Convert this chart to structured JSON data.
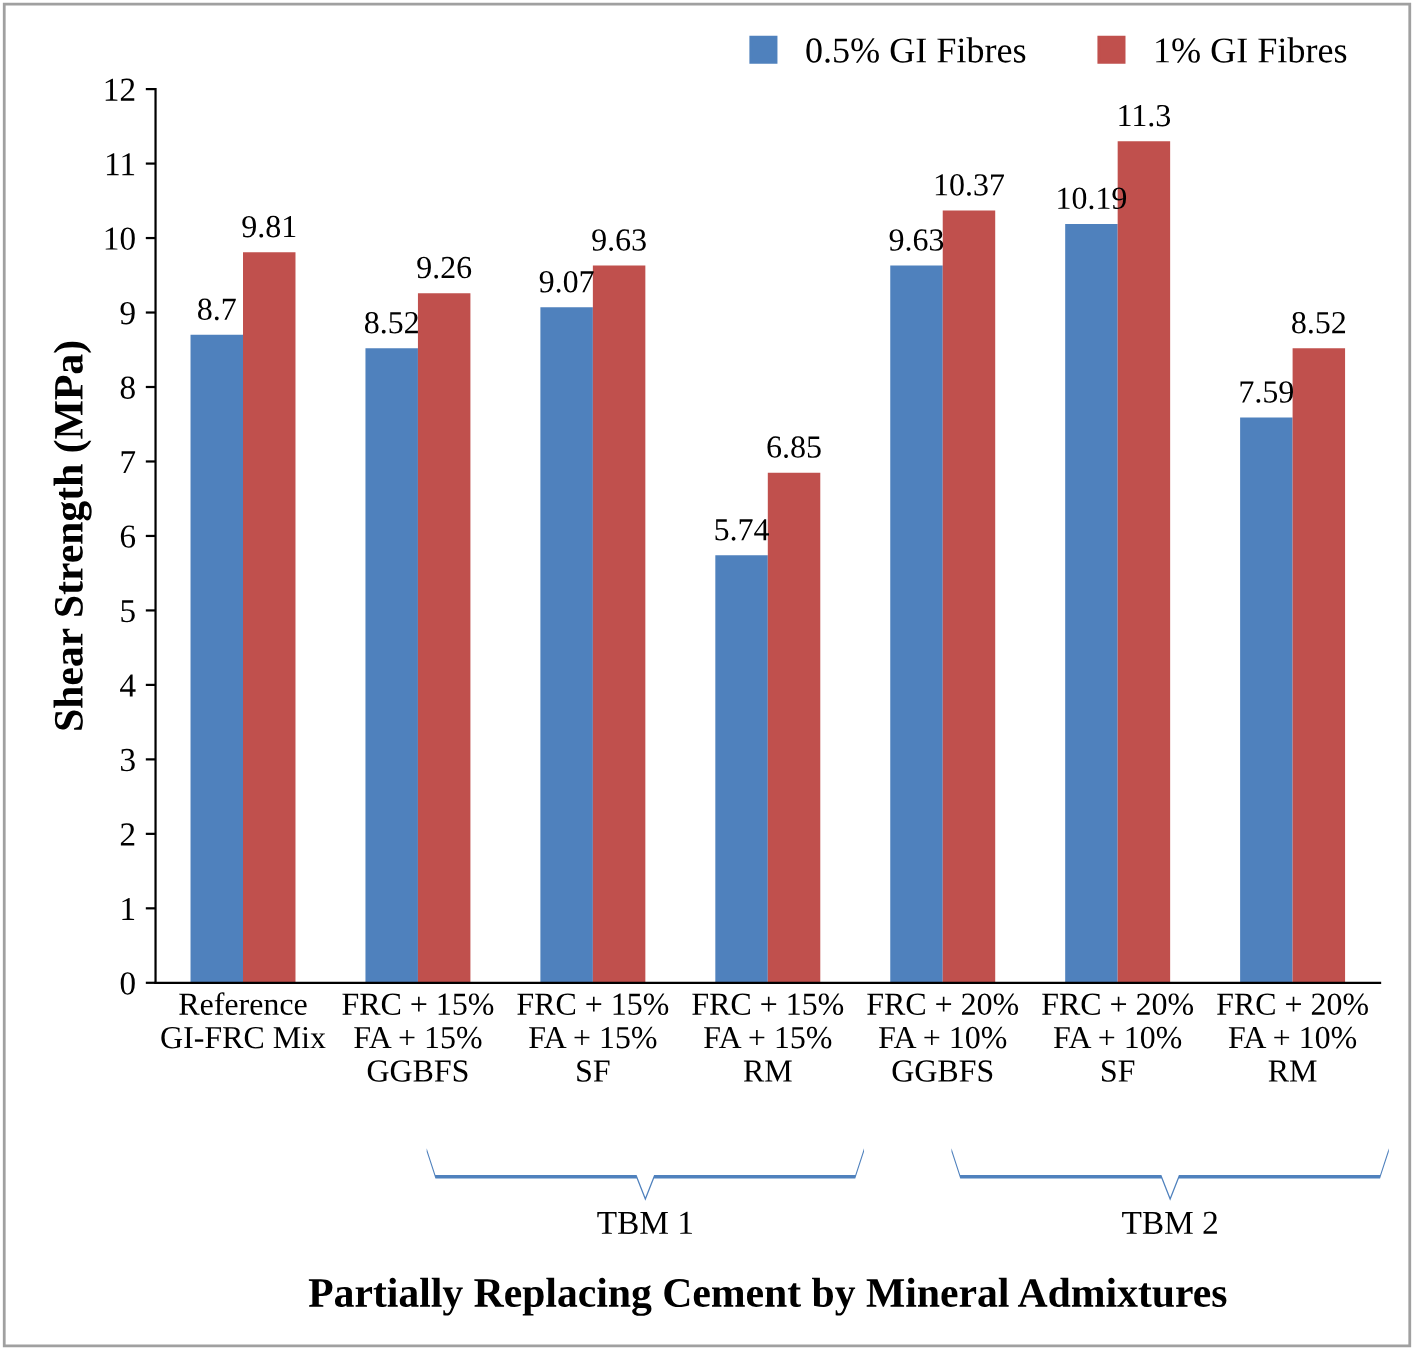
{
  "chart_data": {
    "type": "bar",
    "xlabel": "Partially Replacing Cement by Mineral Admixtures",
    "ylabel": "Shear Strength (MPa)",
    "categories": [
      "Reference\nGI-FRC Mix",
      "FRC + 15%\nFA + 15%\nGGBFS",
      "FRC + 15%\nFA + 15%\nSF",
      "FRC + 15%\nFA + 15%\nRM",
      "FRC + 20%\nFA + 10%\nGGBFS",
      "FRC + 20%\nFA + 10%\nSF",
      "FRC + 20%\nFA + 10%\nRM"
    ],
    "series": [
      {
        "name": "0.5% GI Fibres",
        "color": "#4f81bd",
        "values": [
          8.7,
          8.52,
          9.07,
          5.74,
          9.63,
          10.19,
          7.59
        ]
      },
      {
        "name": "1% GI Fibres",
        "color": "#c0504d",
        "values": [
          9.81,
          9.26,
          9.63,
          6.85,
          10.37,
          11.3,
          8.52
        ]
      }
    ],
    "ylim": [
      0,
      12
    ],
    "yticks": [
      0,
      1,
      2,
      3,
      4,
      5,
      6,
      7,
      8,
      9,
      10,
      11,
      12
    ],
    "grid": false,
    "legend": "top right",
    "data_labels": true,
    "annotations": [
      "TBM 1",
      "TBM 2"
    ]
  }
}
